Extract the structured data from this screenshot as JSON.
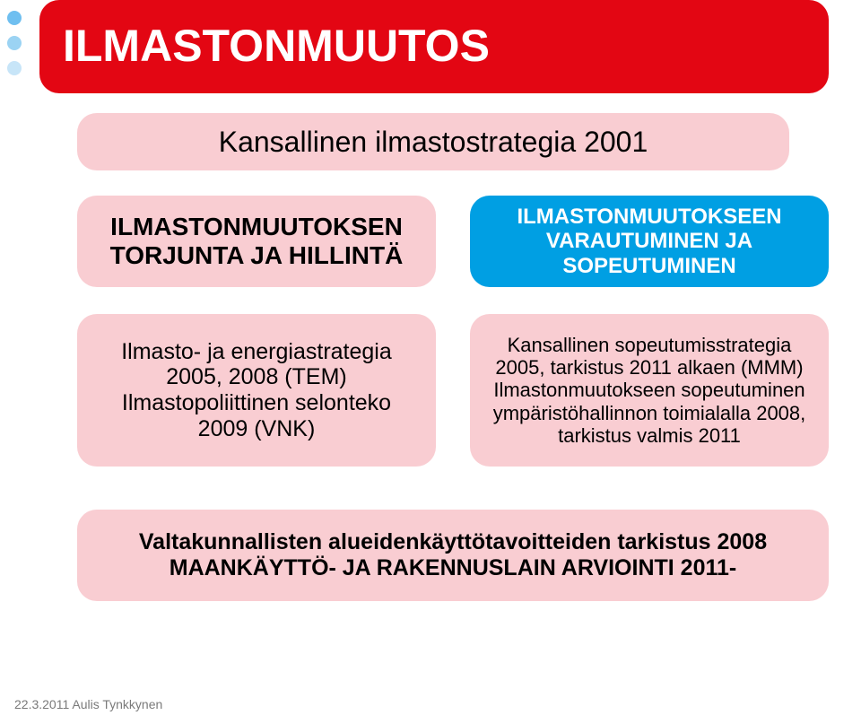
{
  "dots": {
    "colors": [
      "#6fbff0",
      "#9bd3f3",
      "#c7e5f8"
    ]
  },
  "title": {
    "text": "ILMASTONMUUTOS",
    "bg": "#e30613",
    "fg": "#ffffff",
    "fontsize": 50
  },
  "row2": {
    "text": "Kansallinen ilmastostrategia 2001",
    "bg": "#f9cdd2",
    "fg": "#000000",
    "fontsize": 32
  },
  "row3_left": {
    "text": "ILMASTONMUUTOKSEN\nTORJUNTA JA HILLINTÄ",
    "bg": "#f9cdd2",
    "fg": "#000000",
    "fontsize": 28
  },
  "row3_right": {
    "text": "ILMASTONMUUTOKSEEN\nVARAUTUMINEN JA\nSOPEUTUMINEN",
    "bg": "#009fe3",
    "fg": "#ffffff",
    "fontsize": 24
  },
  "row4_left": {
    "text": "Ilmasto- ja energiastrategia\n2005, 2008 (TEM)\nIlmastopoliittinen selonteko\n2009 (VNK)",
    "bg": "#f9cdd2",
    "fg": "#000000",
    "fontsize": 25
  },
  "row4_right": {
    "text": "Kansallinen sopeutumisstrategia\n2005, tarkistus 2011 alkaen (MMM)\nIlmastonmuutokseen sopeutuminen\nympäristöhallinnon toimialalla 2008,\ntarkistus valmis 2011",
    "bg": "#f9cdd2",
    "fg": "#000000",
    "fontsize": 22
  },
  "bottom": {
    "text": "Valtakunnallisten alueidenkäyttötavoitteiden tarkistus 2008\nMAANKÄYTTÖ- JA RAKENNUSLAIN ARVIOINTI 2011-",
    "bg": "#f9cdd2",
    "fg": "#000000",
    "fontsize": 25
  },
  "footer": {
    "text": "22.3.2011 Aulis Tynkkynen",
    "fg": "#7a7a7a",
    "fontsize": 14
  }
}
